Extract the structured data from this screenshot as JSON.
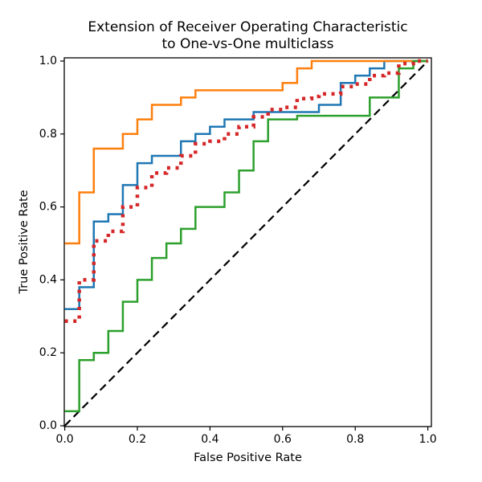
{
  "figure": {
    "title_line1": "Extension of Receiver Operating Characteristic",
    "title_line2": "to One-vs-One multiclass",
    "background_color": "#ffffff",
    "text_color": "#000000"
  },
  "chart_data": {
    "type": "line",
    "title": "Extension of Receiver Operating Characteristic to One-vs-One multiclass",
    "xlabel": "False Positive Rate",
    "ylabel": "True Positive Rate",
    "xlim": [
      0.0,
      1.01
    ],
    "ylim": [
      0.0,
      1.01
    ],
    "grid": false,
    "legend": false,
    "x_ticks": [
      0.0,
      0.2,
      0.4,
      0.6,
      0.8,
      1.0
    ],
    "x_tick_labels": [
      "0.0",
      "0.2",
      "0.4",
      "0.6",
      "0.8",
      "1.0"
    ],
    "y_ticks": [
      0.0,
      0.2,
      0.4,
      0.6,
      0.8,
      1.0
    ],
    "y_tick_labels": [
      "0.0",
      "0.2",
      "0.4",
      "0.6",
      "0.8",
      "1.0"
    ],
    "series": [
      {
        "name": "chance-diagonal",
        "color": "#000000",
        "dash": "dashed",
        "width": 2.2,
        "step": false,
        "points": [
          [
            0.0,
            0.0
          ],
          [
            1.0,
            1.0
          ]
        ]
      },
      {
        "name": "roc-curve-blue",
        "color": "#1f77b4",
        "dash": "solid",
        "width": 2.5,
        "step": true,
        "points": [
          [
            0.0,
            0.32
          ],
          [
            0.04,
            0.38
          ],
          [
            0.08,
            0.56
          ],
          [
            0.12,
            0.58
          ],
          [
            0.16,
            0.66
          ],
          [
            0.2,
            0.72
          ],
          [
            0.24,
            0.74
          ],
          [
            0.32,
            0.78
          ],
          [
            0.36,
            0.8
          ],
          [
            0.4,
            0.82
          ],
          [
            0.44,
            0.84
          ],
          [
            0.52,
            0.86
          ],
          [
            0.7,
            0.88
          ],
          [
            0.76,
            0.94
          ],
          [
            0.8,
            0.96
          ],
          [
            0.84,
            0.98
          ],
          [
            0.88,
            1.0
          ],
          [
            1.0,
            1.0
          ]
        ]
      },
      {
        "name": "roc-curve-orange",
        "color": "#ff7f0e",
        "dash": "solid",
        "width": 2.5,
        "step": true,
        "points": [
          [
            0.0,
            0.5
          ],
          [
            0.04,
            0.64
          ],
          [
            0.08,
            0.76
          ],
          [
            0.16,
            0.8
          ],
          [
            0.2,
            0.84
          ],
          [
            0.24,
            0.88
          ],
          [
            0.32,
            0.9
          ],
          [
            0.36,
            0.92
          ],
          [
            0.6,
            0.94
          ],
          [
            0.64,
            0.98
          ],
          [
            0.68,
            1.0
          ],
          [
            1.0,
            1.0
          ]
        ]
      },
      {
        "name": "roc-curve-green",
        "color": "#2ca02c",
        "dash": "solid",
        "width": 2.5,
        "step": true,
        "points": [
          [
            0.0,
            0.04
          ],
          [
            0.04,
            0.18
          ],
          [
            0.08,
            0.2
          ],
          [
            0.12,
            0.26
          ],
          [
            0.16,
            0.34
          ],
          [
            0.2,
            0.4
          ],
          [
            0.24,
            0.46
          ],
          [
            0.28,
            0.5
          ],
          [
            0.32,
            0.54
          ],
          [
            0.36,
            0.6
          ],
          [
            0.44,
            0.64
          ],
          [
            0.48,
            0.7
          ],
          [
            0.52,
            0.78
          ],
          [
            0.56,
            0.84
          ],
          [
            0.64,
            0.85
          ],
          [
            0.84,
            0.9
          ],
          [
            0.92,
            0.98
          ],
          [
            0.96,
            1.0
          ],
          [
            1.0,
            1.0
          ]
        ]
      },
      {
        "name": "average-curve-red-dotted",
        "color": "#d62728",
        "dash": "dotted",
        "width": 4.5,
        "step": true,
        "points": [
          [
            0.0,
            0.287
          ],
          [
            0.04,
            0.4
          ],
          [
            0.08,
            0.507
          ],
          [
            0.12,
            0.533
          ],
          [
            0.16,
            0.6
          ],
          [
            0.2,
            0.653
          ],
          [
            0.24,
            0.693
          ],
          [
            0.28,
            0.707
          ],
          [
            0.32,
            0.74
          ],
          [
            0.36,
            0.773
          ],
          [
            0.4,
            0.78
          ],
          [
            0.44,
            0.8
          ],
          [
            0.48,
            0.82
          ],
          [
            0.52,
            0.847
          ],
          [
            0.56,
            0.867
          ],
          [
            0.6,
            0.873
          ],
          [
            0.64,
            0.897
          ],
          [
            0.68,
            0.903
          ],
          [
            0.7,
            0.91
          ],
          [
            0.76,
            0.93
          ],
          [
            0.8,
            0.937
          ],
          [
            0.84,
            0.96
          ],
          [
            0.88,
            0.967
          ],
          [
            0.92,
            0.993
          ],
          [
            0.96,
            1.0
          ],
          [
            1.0,
            1.0
          ]
        ]
      }
    ]
  }
}
